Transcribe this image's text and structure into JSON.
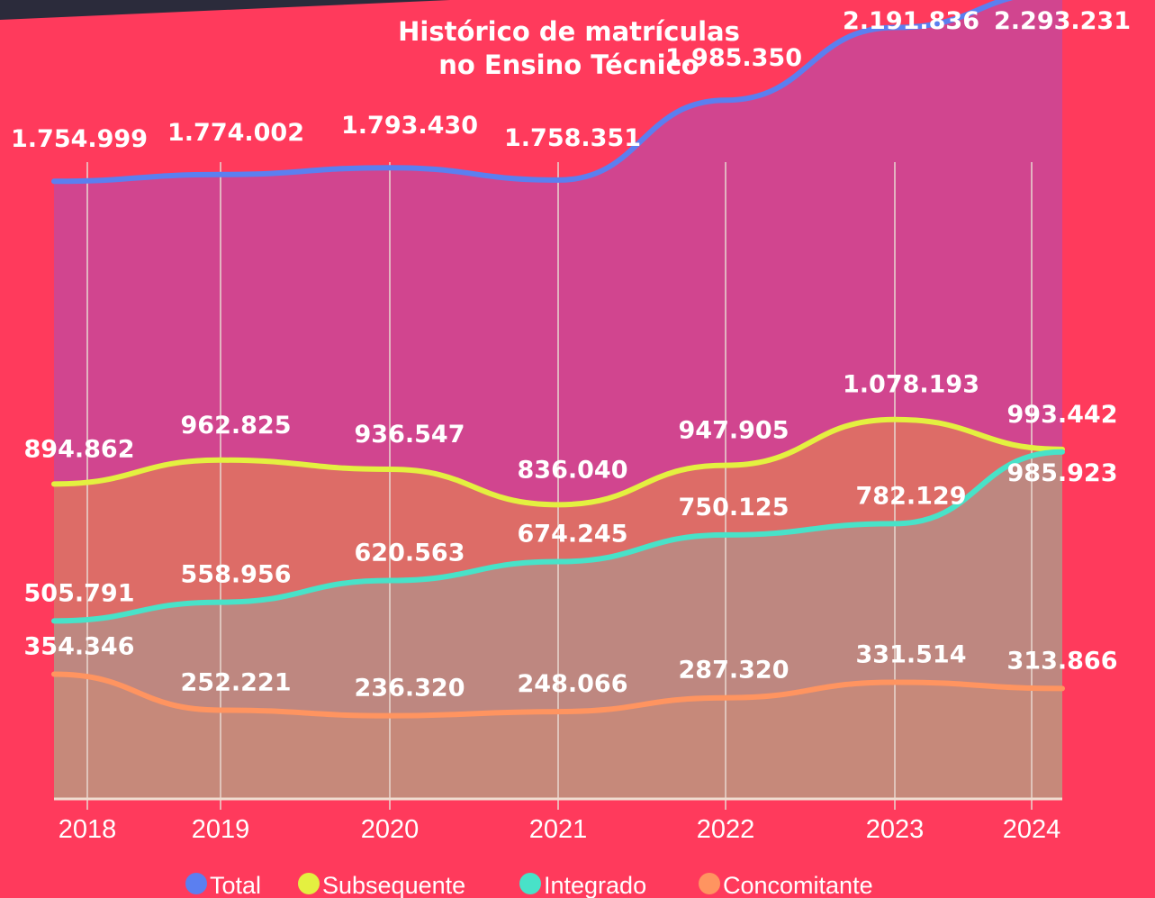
{
  "chart_data": {
    "type": "area",
    "title": [
      "Histórico de matrículas",
      "no Ensino Técnico"
    ],
    "categories": [
      "2018",
      "2019",
      "2020",
      "2021",
      "2022",
      "2023",
      "2024"
    ],
    "ylim": [
      0,
      2270000
    ],
    "grid": true,
    "legend": "bottom",
    "series": [
      {
        "name": "Total",
        "color": "#5b7ff0",
        "fill": "#c24aa0",
        "values": [
          1754999,
          1774002,
          1793430,
          1758351,
          1985350,
          2191836,
          2293231
        ],
        "value_labels": [
          "1.754.999",
          "1.774.002",
          "1.793.430",
          "1.758.351",
          "1.985.350",
          "2.191.836",
          "2.293.231"
        ]
      },
      {
        "name": "Subsequente",
        "color": "#e4f040",
        "fill": "#e07a5a",
        "values": [
          894862,
          962825,
          936547,
          836040,
          947905,
          1078193,
          993442
        ],
        "value_labels": [
          "894.862",
          "962.825",
          "936.547",
          "836.040",
          "947.905",
          "1.078.193",
          "993.442"
        ]
      },
      {
        "name": "Integrado",
        "color": "#48e2c8",
        "fill": "#b39088",
        "values": [
          505791,
          558956,
          620563,
          674245,
          750125,
          782129,
          985923
        ],
        "value_labels": [
          "505.791",
          "558.956",
          "620.563",
          "674.245",
          "750.125",
          "782.129",
          "985.923"
        ]
      },
      {
        "name": "Concomitante",
        "color": "#ff9460",
        "fill": "#c88a78",
        "values": [
          354346,
          252221,
          236320,
          248066,
          287320,
          331514,
          313866
        ],
        "value_labels": [
          "354.346",
          "252.221",
          "236.320",
          "248.066",
          "287.320",
          "331.514",
          "313.866"
        ]
      }
    ]
  }
}
